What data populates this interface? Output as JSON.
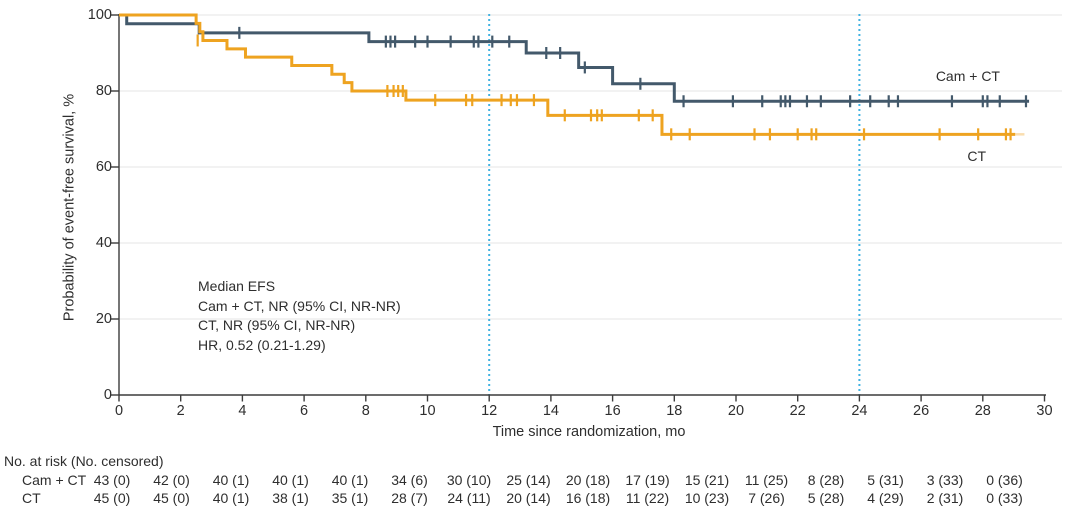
{
  "figure": {
    "y_axis": {
      "title": "Probability of event-free survival, %",
      "ticks": [
        0,
        20,
        40,
        60,
        80,
        100
      ]
    },
    "x_axis": {
      "title": "Time since randomization, mo",
      "ticks": [
        0,
        2,
        4,
        6,
        8,
        10,
        12,
        14,
        16,
        18,
        20,
        22,
        24,
        26,
        28,
        30
      ]
    },
    "annotation": {
      "lines": [
        "Median EFS",
        "Cam + CT, NR (95% CI, NR-NR)",
        "CT, NR (95% CI, NR-NR)",
        "HR, 0.52 (0.21-1.29)"
      ]
    }
  },
  "chart_data": {
    "type": "line",
    "subtype": "kaplan-meier-step",
    "title": "",
    "xlabel": "Time since randomization, mo",
    "ylabel": "Probability of event-free survival, %",
    "xlim": [
      0,
      30
    ],
    "ylim": [
      0,
      100
    ],
    "grid": "horizontal-light",
    "reference_lines_x": [
      12,
      24
    ],
    "reference_line_color": "#41b2e1",
    "axis_color": "#3c3c3c",
    "grid_color": "#ebebeb",
    "series": [
      {
        "name": "Cam + CT",
        "key": "cam-ct",
        "color": "#43596b",
        "steps": [
          [
            0,
            100
          ],
          [
            0.25,
            97.7
          ],
          [
            2.6,
            95.3
          ],
          [
            8.1,
            93.0
          ],
          [
            13.2,
            90.0
          ],
          [
            14.9,
            86.2
          ],
          [
            16.0,
            81.9
          ],
          [
            18.0,
            77.3
          ]
        ],
        "end": 29.5,
        "tail_end": 29.5,
        "censors": [
          [
            3.9,
            95.3
          ],
          [
            8.65,
            93.0
          ],
          [
            8.8,
            93.0
          ],
          [
            8.95,
            93.0
          ],
          [
            9.6,
            93.0
          ],
          [
            10.0,
            93.0
          ],
          [
            10.75,
            93.0
          ],
          [
            11.5,
            93.0
          ],
          [
            11.65,
            93.0
          ],
          [
            12.1,
            93.0
          ],
          [
            12.65,
            93.0
          ],
          [
            13.85,
            90.0
          ],
          [
            14.3,
            90.0
          ],
          [
            15.1,
            86.2
          ],
          [
            16.9,
            81.9
          ],
          [
            18.3,
            77.3
          ],
          [
            19.9,
            77.3
          ],
          [
            20.85,
            77.3
          ],
          [
            21.45,
            77.3
          ],
          [
            21.6,
            77.3
          ],
          [
            21.75,
            77.3
          ],
          [
            22.3,
            77.3
          ],
          [
            22.75,
            77.3
          ],
          [
            23.7,
            77.3
          ],
          [
            24.35,
            77.3
          ],
          [
            24.95,
            77.3
          ],
          [
            25.25,
            77.3
          ],
          [
            27.0,
            77.3
          ],
          [
            28.0,
            77.3
          ],
          [
            28.15,
            77.3
          ],
          [
            28.55,
            77.3
          ],
          [
            29.4,
            77.3
          ]
        ]
      },
      {
        "name": "CT",
        "key": "ct",
        "color": "#eea320",
        "steps": [
          [
            0,
            100
          ],
          [
            2.5,
            97.8
          ],
          [
            2.62,
            95.6
          ],
          [
            2.72,
            93.3
          ],
          [
            3.5,
            91.1
          ],
          [
            4.1,
            88.9
          ],
          [
            5.6,
            86.7
          ],
          [
            6.9,
            84.4
          ],
          [
            7.3,
            82.2
          ],
          [
            7.55,
            80.0
          ],
          [
            9.3,
            77.6
          ],
          [
            13.9,
            73.6
          ],
          [
            17.6,
            68.6
          ]
        ],
        "end": 29.05,
        "tail_end": 29.35,
        "censors": [
          [
            2.55,
            93.3
          ],
          [
            8.7,
            80.0
          ],
          [
            8.9,
            80.0
          ],
          [
            9.05,
            80.0
          ],
          [
            9.2,
            80.0
          ],
          [
            10.25,
            77.6
          ],
          [
            11.25,
            77.6
          ],
          [
            11.45,
            77.6
          ],
          [
            12.4,
            77.6
          ],
          [
            12.7,
            77.6
          ],
          [
            12.9,
            77.6
          ],
          [
            13.45,
            77.6
          ],
          [
            14.45,
            73.6
          ],
          [
            15.3,
            73.6
          ],
          [
            15.5,
            73.6
          ],
          [
            15.65,
            73.6
          ],
          [
            16.85,
            73.6
          ],
          [
            17.3,
            73.6
          ],
          [
            17.9,
            68.6
          ],
          [
            18.5,
            68.6
          ],
          [
            20.6,
            68.6
          ],
          [
            21.1,
            68.6
          ],
          [
            22.0,
            68.6
          ],
          [
            22.45,
            68.6
          ],
          [
            22.6,
            68.6
          ],
          [
            24.15,
            68.6
          ],
          [
            26.6,
            68.6
          ],
          [
            27.85,
            68.6
          ],
          [
            28.75,
            68.6
          ],
          [
            28.9,
            68.6
          ]
        ]
      }
    ]
  },
  "risk_table": {
    "header": "No. at risk (No. censored)",
    "rows": [
      {
        "label": "Cam + CT",
        "values": [
          "43 (0)",
          "42 (0)",
          "40 (1)",
          "40 (1)",
          "40 (1)",
          "34 (6)",
          "30 (10)",
          "25 (14)",
          "20 (18)",
          "17 (19)",
          "15 (21)",
          "11 (25)",
          "8 (28)",
          "5 (31)",
          "3 (33)",
          "0 (36)"
        ]
      },
      {
        "label": "CT",
        "values": [
          "45 (0)",
          "45 (0)",
          "40 (1)",
          "38 (1)",
          "35 (1)",
          "28 (7)",
          "24 (11)",
          "20 (14)",
          "16 (18)",
          "11 (22)",
          "10 (23)",
          "7 (26)",
          "5 (28)",
          "4 (29)",
          "2 (31)",
          "0 (33)"
        ]
      }
    ]
  }
}
